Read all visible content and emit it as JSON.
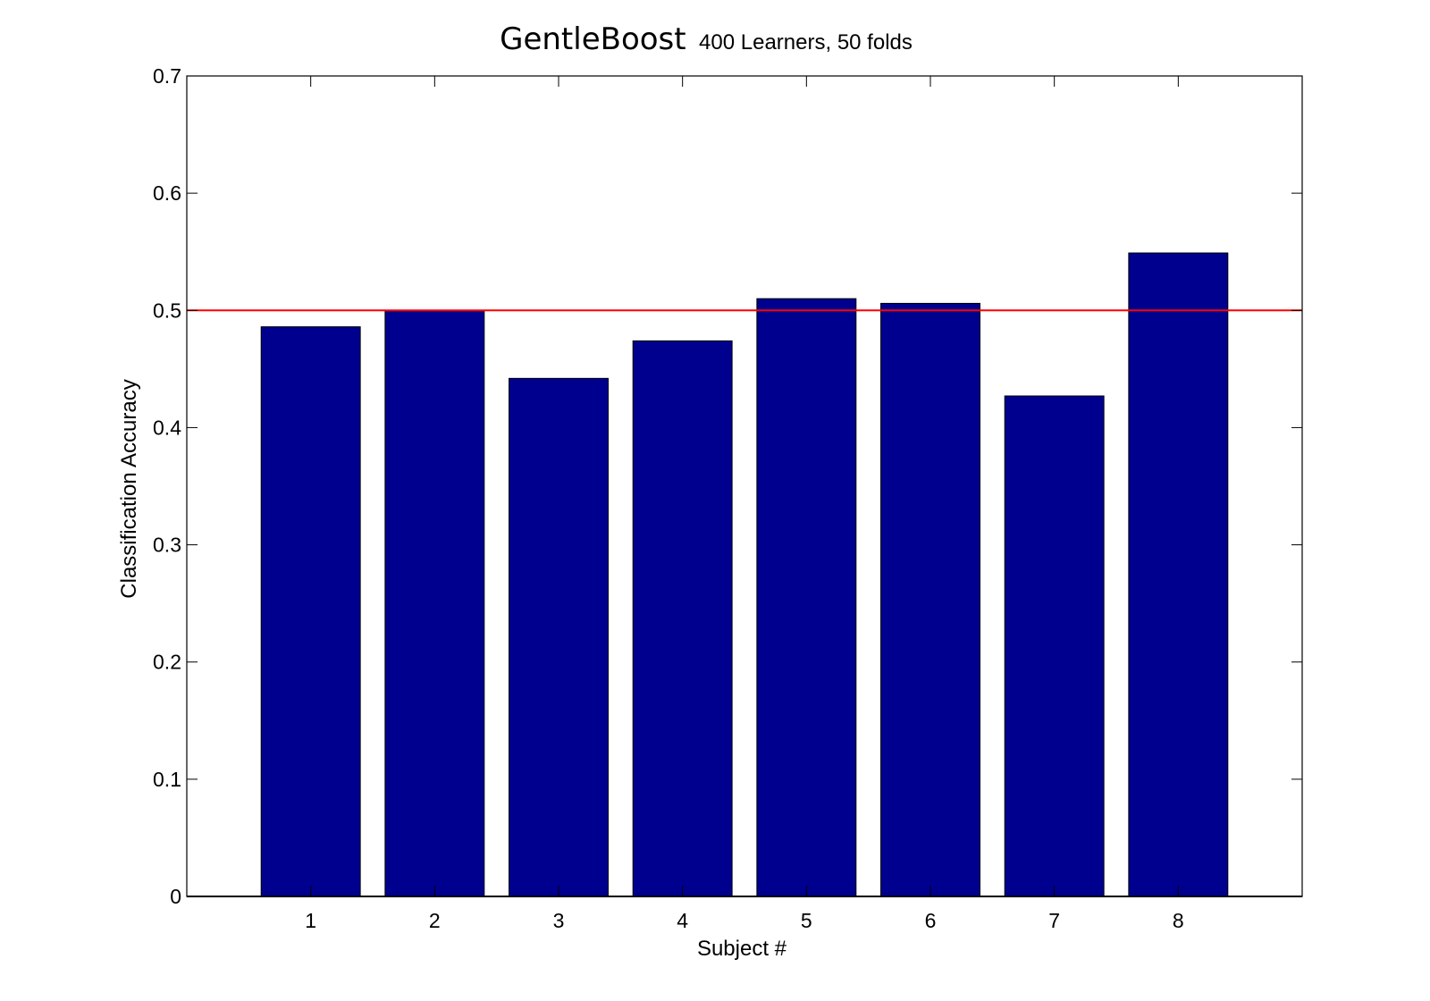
{
  "chart_data": {
    "type": "bar",
    "title": "GentleBoost",
    "subtitle": "400 Learners, 50 folds",
    "xlabel": "Subject #",
    "ylabel": "Classification Accuracy",
    "categories": [
      "1",
      "2",
      "3",
      "4",
      "5",
      "6",
      "7",
      "8"
    ],
    "values": [
      0.486,
      0.5,
      0.442,
      0.474,
      0.51,
      0.506,
      0.427,
      0.549
    ],
    "xlim": [
      0,
      9
    ],
    "ylim": [
      0,
      0.7
    ],
    "yticks": [
      0,
      0.1,
      0.2,
      0.3,
      0.4,
      0.5,
      0.6,
      0.7
    ],
    "ytick_labels": [
      "0",
      "0.1",
      "0.2",
      "0.3",
      "0.4",
      "0.5",
      "0.6",
      "0.7"
    ],
    "bar_color": "#00008f",
    "reference_line": {
      "y": 0.5,
      "color": "#ff0000"
    },
    "grid": false,
    "legend": "none"
  }
}
